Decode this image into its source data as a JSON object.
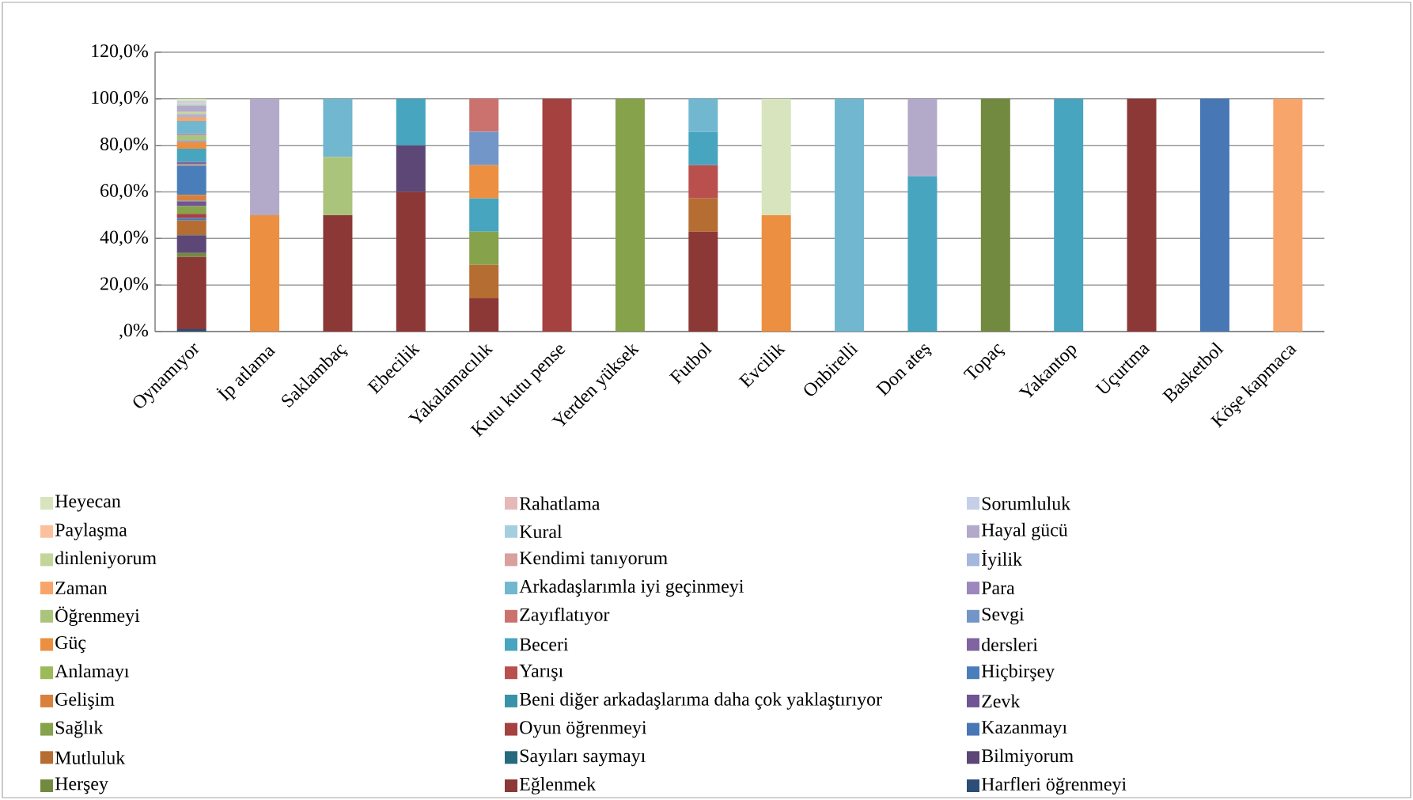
{
  "chart_data": {
    "type": "bar",
    "stacked": true,
    "categories": [
      "Oynamıyor",
      "İp atlama",
      "Saklambaç",
      "Ebecilik",
      "Yakalamacılık",
      "Kutu kutu pense",
      "Yerden yüksek",
      "Futbol",
      "Evcilik",
      "Onbirelli",
      "Don ateş",
      "Topaç",
      "Yakantop",
      "Uçurtma",
      "Basketbol",
      "Köşe kapmaca"
    ],
    "ylim": [
      0,
      120
    ],
    "yticks": [
      {
        "value": 0,
        "label": ",0%"
      },
      {
        "value": 20,
        "label": "20,0%"
      },
      {
        "value": 40,
        "label": "40,0%"
      },
      {
        "value": 60,
        "label": "60,0%"
      },
      {
        "value": 80,
        "label": "80,0%"
      },
      {
        "value": 100,
        "label": "100,0%"
      },
      {
        "value": 120,
        "label": "120,0%"
      }
    ],
    "grid": "y",
    "legend": "bottom",
    "series": [
      {
        "name": "Harfleri öğrenmeyi",
        "color": "#2c4d75",
        "values": [
          1.0,
          null,
          null,
          null,
          null,
          null,
          null,
          null,
          null,
          null,
          null,
          null,
          null,
          null,
          null,
          null
        ]
      },
      {
        "name": "Eğlenmek",
        "color": "#8c3836",
        "values": [
          31,
          null,
          50,
          60,
          14.3,
          null,
          null,
          42.9,
          null,
          null,
          null,
          null,
          null,
          100,
          null,
          null
        ]
      },
      {
        "name": "Herşey",
        "color": "#728a40",
        "values": [
          1.7,
          null,
          null,
          null,
          null,
          null,
          null,
          null,
          null,
          null,
          null,
          100,
          null,
          null,
          null,
          null
        ]
      },
      {
        "name": "Bilmiyorum",
        "color": "#5c4776",
        "values": [
          7.5,
          null,
          null,
          20,
          null,
          null,
          null,
          null,
          null,
          null,
          null,
          null,
          null,
          null,
          null,
          null
        ]
      },
      {
        "name": "Sayıları saymayı",
        "color": "#276a7c",
        "values": [
          0.3,
          null,
          null,
          null,
          null,
          null,
          null,
          null,
          null,
          null,
          null,
          null,
          null,
          null,
          null,
          null
        ]
      },
      {
        "name": "Mutluluk",
        "color": "#b66d31",
        "values": [
          6.2,
          null,
          null,
          null,
          14.3,
          null,
          null,
          14.3,
          null,
          null,
          null,
          null,
          null,
          null,
          null,
          null
        ]
      },
      {
        "name": "Kazanmayı",
        "color": "#4877b5",
        "values": [
          1.1,
          null,
          null,
          null,
          null,
          null,
          null,
          null,
          null,
          null,
          null,
          null,
          null,
          null,
          100,
          null
        ]
      },
      {
        "name": "Oyun öğrenmeyi",
        "color": "#a5413f",
        "values": [
          1.8,
          null,
          null,
          null,
          null,
          100,
          null,
          null,
          null,
          null,
          null,
          null,
          null,
          null,
          null,
          null
        ]
      },
      {
        "name": "Sağlık",
        "color": "#86a24b",
        "values": [
          3.3,
          null,
          null,
          null,
          14.3,
          null,
          100,
          null,
          null,
          null,
          null,
          null,
          null,
          null,
          null,
          null
        ]
      },
      {
        "name": "Zevk",
        "color": "#6f5593",
        "values": [
          2.0,
          null,
          null,
          null,
          null,
          null,
          null,
          null,
          null,
          null,
          null,
          null,
          null,
          null,
          null,
          null
        ]
      },
      {
        "name": "Beni diğer arkadaşlarıma daha çok yaklaştırıyor",
        "color": "#3893a8",
        "values": [
          0.3,
          null,
          null,
          null,
          null,
          null,
          null,
          null,
          null,
          null,
          null,
          null,
          null,
          null,
          null,
          null
        ]
      },
      {
        "name": "Gelişim",
        "color": "#d9803c",
        "values": [
          2.5,
          null,
          null,
          null,
          null,
          null,
          null,
          null,
          null,
          null,
          null,
          null,
          null,
          null,
          null,
          null
        ]
      },
      {
        "name": "Hiçbirşey",
        "color": "#4a7ebb",
        "values": [
          12.5,
          null,
          null,
          null,
          null,
          null,
          null,
          null,
          null,
          null,
          null,
          null,
          null,
          null,
          null,
          null
        ]
      },
      {
        "name": "Yarışı",
        "color": "#b9504e",
        "values": [
          0.3,
          null,
          null,
          null,
          null,
          null,
          null,
          14.3,
          null,
          null,
          null,
          null,
          null,
          null,
          null,
          null
        ]
      },
      {
        "name": "Anlamayı",
        "color": "#9bbb59",
        "values": [
          0.3,
          null,
          null,
          null,
          null,
          null,
          null,
          null,
          null,
          null,
          null,
          null,
          null,
          null,
          null,
          null
        ]
      },
      {
        "name": "dersleri",
        "color": "#8064a2",
        "values": [
          1.0,
          null,
          null,
          null,
          null,
          null,
          null,
          null,
          null,
          null,
          null,
          null,
          null,
          null,
          null,
          null
        ]
      },
      {
        "name": "Beceri",
        "color": "#47a5bf",
        "values": [
          5.7,
          null,
          null,
          20,
          14.3,
          null,
          null,
          14.3,
          null,
          null,
          66.7,
          null,
          100,
          null,
          null,
          null
        ]
      },
      {
        "name": "Güç",
        "color": "#ec8f40",
        "values": [
          2.8,
          50,
          null,
          null,
          14.3,
          null,
          null,
          null,
          50,
          null,
          null,
          null,
          null,
          null,
          null,
          null
        ]
      },
      {
        "name": "Sevgi",
        "color": "#7396c8",
        "values": [
          0.5,
          null,
          null,
          null,
          14.3,
          null,
          null,
          null,
          null,
          null,
          null,
          null,
          null,
          null,
          null,
          null
        ]
      },
      {
        "name": "Zayıflatıyor",
        "color": "#cb726f",
        "values": [
          0.3,
          null,
          null,
          null,
          14.3,
          null,
          null,
          null,
          null,
          null,
          null,
          null,
          null,
          null,
          null,
          null
        ]
      },
      {
        "name": "Öğrenmeyi",
        "color": "#aac47c",
        "values": [
          2.3,
          null,
          25,
          null,
          null,
          null,
          null,
          null,
          null,
          null,
          null,
          null,
          null,
          null,
          null,
          null
        ]
      },
      {
        "name": "Para",
        "color": "#9d87bd",
        "values": [
          0.7,
          null,
          null,
          null,
          null,
          null,
          null,
          null,
          null,
          null,
          null,
          null,
          null,
          null,
          null,
          null
        ]
      },
      {
        "name": "Arkadaşlarımla iyi geçinmeyi",
        "color": "#71b7cf",
        "values": [
          5.3,
          null,
          25,
          null,
          null,
          null,
          null,
          14.3,
          null,
          100,
          null,
          null,
          null,
          null,
          null,
          null
        ]
      },
      {
        "name": "Zaman",
        "color": "#f8a56b",
        "values": [
          1.7,
          null,
          null,
          null,
          null,
          null,
          null,
          null,
          null,
          null,
          null,
          null,
          null,
          null,
          null,
          100
        ]
      },
      {
        "name": "İyilik",
        "color": "#a5b7dc",
        "values": [
          1.1,
          null,
          null,
          null,
          null,
          null,
          null,
          null,
          null,
          null,
          null,
          null,
          null,
          null,
          null,
          null
        ]
      },
      {
        "name": "Kendimi tanıyorum",
        "color": "#d9a09e",
        "values": [
          0.3,
          null,
          null,
          null,
          null,
          null,
          null,
          null,
          null,
          null,
          null,
          null,
          null,
          null,
          null,
          null
        ]
      },
      {
        "name": "dinleniyorum",
        "color": "#c2d69a",
        "values": [
          0.8,
          null,
          null,
          null,
          null,
          null,
          null,
          null,
          null,
          null,
          null,
          null,
          null,
          null,
          null,
          null
        ]
      },
      {
        "name": "Hayal gücü",
        "color": "#b3a9c8",
        "values": [
          2.6,
          50,
          null,
          null,
          null,
          null,
          null,
          null,
          null,
          null,
          33.3,
          null,
          null,
          null,
          null,
          null
        ]
      },
      {
        "name": "Kural",
        "color": "#a4cfdf",
        "values": [
          0.6,
          null,
          null,
          null,
          null,
          null,
          null,
          null,
          null,
          null,
          null,
          null,
          null,
          null,
          null,
          null
        ]
      },
      {
        "name": "Paylaşma",
        "color": "#fbc09c",
        "values": [
          0.5,
          null,
          null,
          null,
          null,
          null,
          null,
          null,
          null,
          null,
          null,
          null,
          null,
          null,
          null,
          null
        ]
      },
      {
        "name": "Sorumluluk",
        "color": "#c5d0e8",
        "values": [
          0.9,
          null,
          null,
          null,
          null,
          null,
          null,
          null,
          null,
          null,
          null,
          null,
          null,
          null,
          null,
          null
        ]
      },
      {
        "name": "Rahatlama",
        "color": "#e6b9b8",
        "values": [
          null,
          null,
          null,
          null,
          null,
          null,
          null,
          null,
          null,
          null,
          null,
          null,
          null,
          null,
          null,
          null
        ]
      },
      {
        "name": "Heyecan",
        "color": "#d7e4bd",
        "values": [
          1.1,
          null,
          null,
          null,
          null,
          null,
          null,
          null,
          50,
          null,
          null,
          null,
          null,
          null,
          null,
          null
        ]
      }
    ]
  }
}
